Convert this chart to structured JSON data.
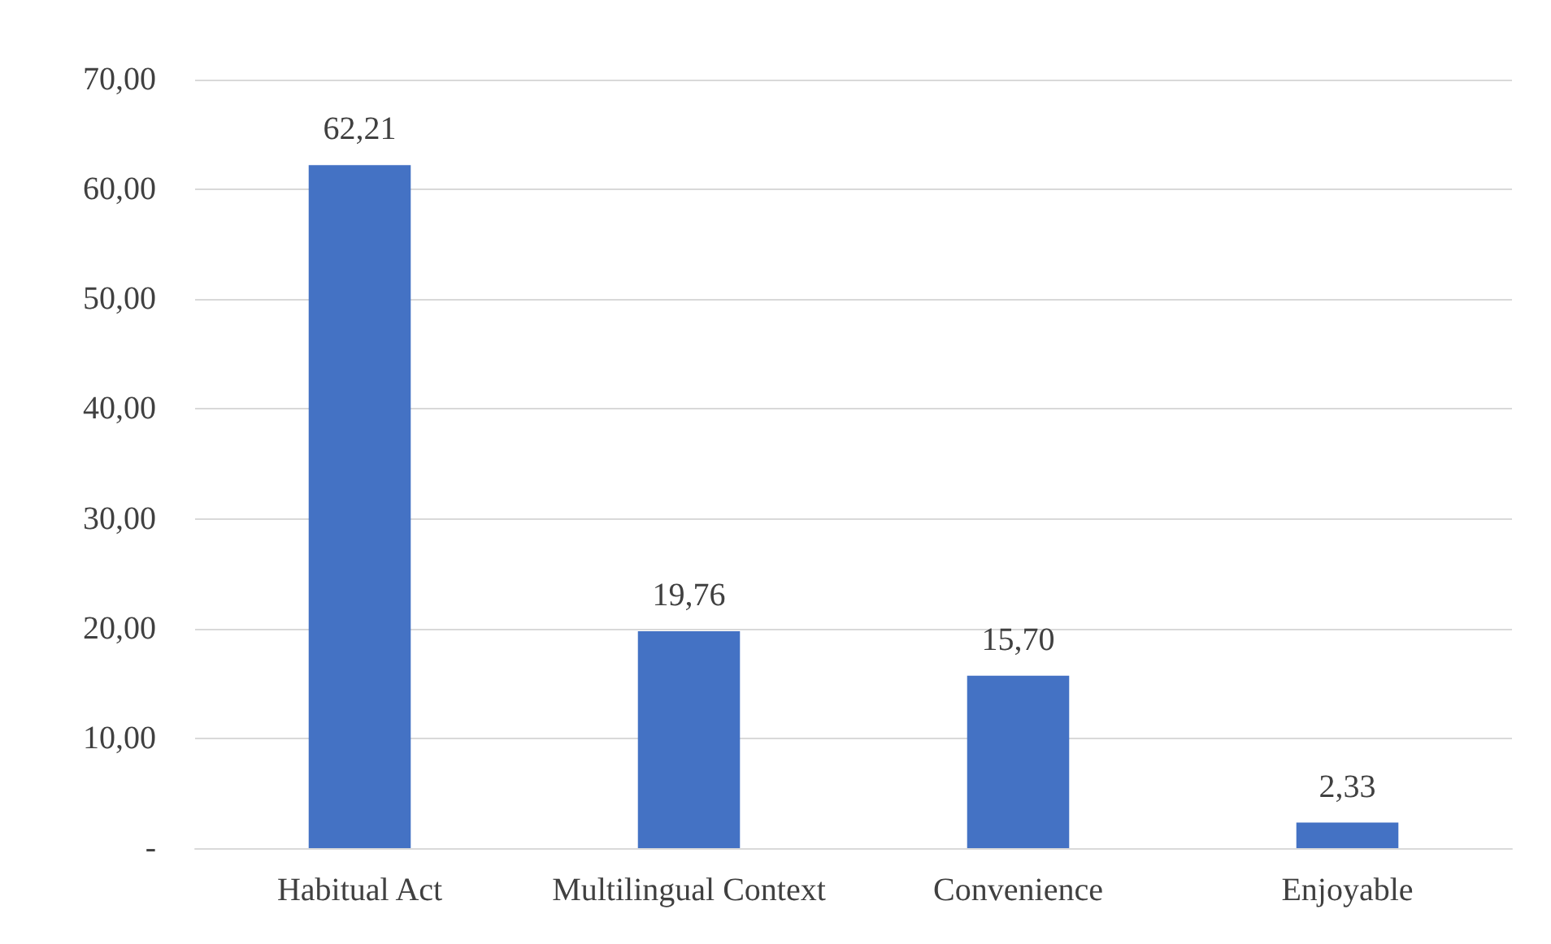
{
  "chart_data": {
    "type": "bar",
    "categories": [
      "Habitual Act",
      "Multilingual Context",
      "Convenience",
      "Enjoyable"
    ],
    "values": [
      62.21,
      19.76,
      15.7,
      2.33
    ],
    "value_labels": [
      "62,21",
      "19,76",
      "15,70",
      "2,33"
    ],
    "color": "#4472c4",
    "ylim": [
      0,
      70
    ],
    "yticks": [
      {
        "value": 0,
        "label": "-"
      },
      {
        "value": 10,
        "label": "10,00"
      },
      {
        "value": 20,
        "label": "20,00"
      },
      {
        "value": 30,
        "label": "30,00"
      },
      {
        "value": 40,
        "label": "40,00"
      },
      {
        "value": 50,
        "label": "50,00"
      },
      {
        "value": 60,
        "label": "60,00"
      },
      {
        "value": 70,
        "label": "70,00"
      }
    ],
    "grid": "y"
  }
}
